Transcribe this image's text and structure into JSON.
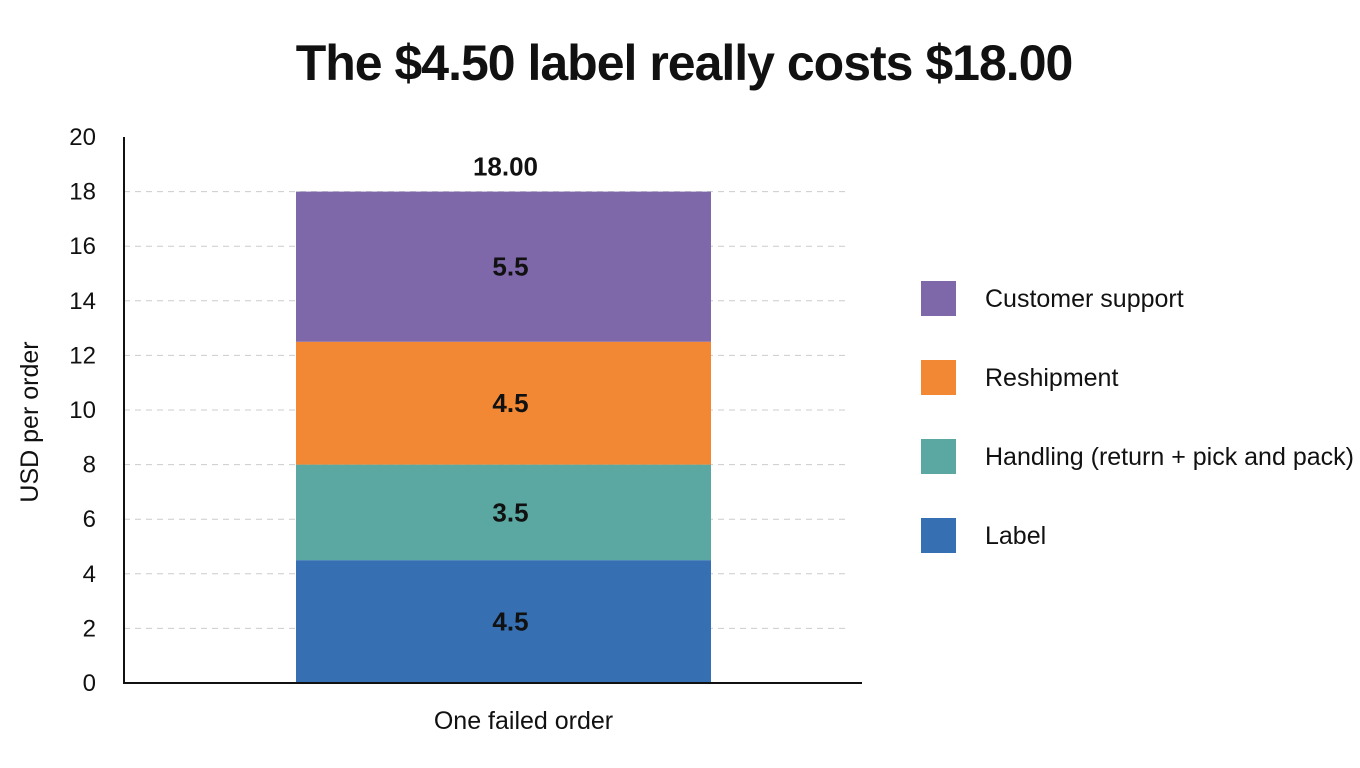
{
  "chart_data": {
    "type": "bar",
    "stacked": true,
    "title": "The $4.50 label really costs $18.00",
    "ylabel": "USD per order",
    "categories": [
      "One failed order"
    ],
    "ylim": [
      0,
      20
    ],
    "yticks": [
      0,
      2,
      4,
      6,
      8,
      10,
      12,
      14,
      16,
      18,
      20
    ],
    "grid": true,
    "legend_position": "right",
    "total_label": "18.00",
    "series": [
      {
        "name": "Label",
        "values": [
          4.5
        ],
        "value_label": "4.5",
        "color": "#3670B3"
      },
      {
        "name": "Handling (return + pick and pack)",
        "values": [
          3.5
        ],
        "value_label": "3.5",
        "color": "#5BA8A3"
      },
      {
        "name": "Reshipment",
        "values": [
          4.5
        ],
        "value_label": "4.5",
        "color": "#F28834"
      },
      {
        "name": "Customer support",
        "values": [
          5.5
        ],
        "value_label": "5.5",
        "color": "#7E68AA"
      }
    ],
    "legend_order": [
      "Customer support",
      "Reshipment",
      "Handling (return + pick and pack)",
      "Label"
    ]
  }
}
